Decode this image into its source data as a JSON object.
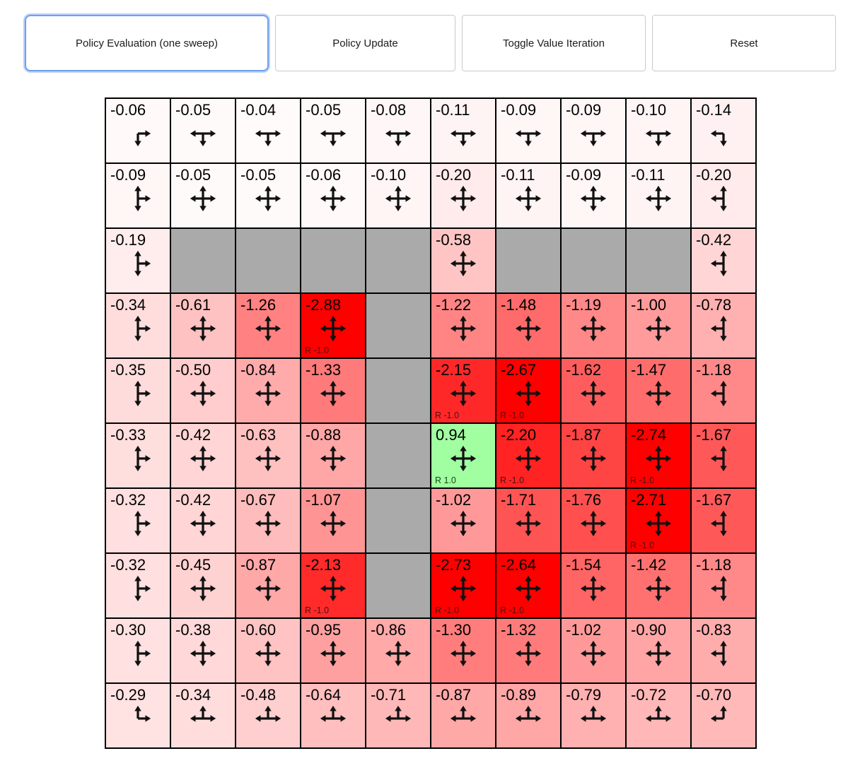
{
  "toolbar": {
    "buttons": [
      {
        "label": "Policy Evaluation (one sweep)",
        "active": true
      },
      {
        "label": "Policy Update",
        "active": false
      },
      {
        "label": "Toggle Value Iteration",
        "active": false
      },
      {
        "label": "Reset",
        "active": false
      }
    ]
  },
  "colors": {
    "wall": "#aaaaaa",
    "accent_focus": "#6f9ff2",
    "button_border": "#c9c9c9",
    "cell_border": "#000000",
    "positive_cell": "#a1ffa1",
    "strong_negative_cell": "#ff0000"
  },
  "grid": {
    "rows": 10,
    "cols": 10,
    "cells": [
      [
        {
          "v": -0.06,
          "a": "rd"
        },
        {
          "v": -0.05,
          "a": "lrd"
        },
        {
          "v": -0.04,
          "a": "lrd"
        },
        {
          "v": -0.05,
          "a": "lrd"
        },
        {
          "v": -0.08,
          "a": "lrd"
        },
        {
          "v": -0.11,
          "a": "lrd"
        },
        {
          "v": -0.09,
          "a": "lrd"
        },
        {
          "v": -0.09,
          "a": "lrd"
        },
        {
          "v": -0.1,
          "a": "lrd"
        },
        {
          "v": -0.14,
          "a": "ld"
        }
      ],
      [
        {
          "v": -0.09,
          "a": "urd"
        },
        {
          "v": -0.05,
          "a": "ulrd"
        },
        {
          "v": -0.05,
          "a": "ulrd"
        },
        {
          "v": -0.06,
          "a": "ulrd"
        },
        {
          "v": -0.1,
          "a": "ulrd"
        },
        {
          "v": -0.2,
          "a": "ulrd"
        },
        {
          "v": -0.11,
          "a": "ulrd"
        },
        {
          "v": -0.09,
          "a": "ulrd"
        },
        {
          "v": -0.11,
          "a": "ulrd"
        },
        {
          "v": -0.2,
          "a": "uld"
        }
      ],
      [
        {
          "v": -0.19,
          "a": "urd"
        },
        {
          "wall": true
        },
        {
          "wall": true
        },
        {
          "wall": true
        },
        {
          "wall": true
        },
        {
          "v": -0.58,
          "a": "ulrd"
        },
        {
          "wall": true
        },
        {
          "wall": true
        },
        {
          "wall": true
        },
        {
          "v": -0.42,
          "a": "uld"
        }
      ],
      [
        {
          "v": -0.34,
          "a": "urd"
        },
        {
          "v": -0.61,
          "a": "ulrd"
        },
        {
          "v": -1.26,
          "a": "ulrd"
        },
        {
          "v": -2.88,
          "a": "ulrd",
          "r": "R -1.0"
        },
        {
          "wall": true
        },
        {
          "v": -1.22,
          "a": "ulrd"
        },
        {
          "v": -1.48,
          "a": "ulrd"
        },
        {
          "v": -1.19,
          "a": "ulrd"
        },
        {
          "v": -1.0,
          "a": "ulrd"
        },
        {
          "v": -0.78,
          "a": "uld"
        }
      ],
      [
        {
          "v": -0.35,
          "a": "urd"
        },
        {
          "v": -0.5,
          "a": "ulrd"
        },
        {
          "v": -0.84,
          "a": "ulrd"
        },
        {
          "v": -1.33,
          "a": "ulrd"
        },
        {
          "wall": true
        },
        {
          "v": -2.15,
          "a": "ulrd",
          "r": "R -1.0"
        },
        {
          "v": -2.67,
          "a": "ulrd",
          "r": "R -1.0"
        },
        {
          "v": -1.62,
          "a": "ulrd"
        },
        {
          "v": -1.47,
          "a": "ulrd"
        },
        {
          "v": -1.18,
          "a": "uld"
        }
      ],
      [
        {
          "v": -0.33,
          "a": "urd"
        },
        {
          "v": -0.42,
          "a": "ulrd"
        },
        {
          "v": -0.63,
          "a": "ulrd"
        },
        {
          "v": -0.88,
          "a": "ulrd"
        },
        {
          "wall": true
        },
        {
          "v": 0.94,
          "a": "ulrd",
          "r": "R 1.0"
        },
        {
          "v": -2.2,
          "a": "ulrd",
          "r": "R -1.0"
        },
        {
          "v": -1.87,
          "a": "ulrd"
        },
        {
          "v": -2.74,
          "a": "ulrd",
          "r": "R -1.0"
        },
        {
          "v": -1.67,
          "a": "uld"
        }
      ],
      [
        {
          "v": -0.32,
          "a": "urd"
        },
        {
          "v": -0.42,
          "a": "ulrd"
        },
        {
          "v": -0.67,
          "a": "ulrd"
        },
        {
          "v": -1.07,
          "a": "ulrd"
        },
        {
          "wall": true
        },
        {
          "v": -1.02,
          "a": "ulrd"
        },
        {
          "v": -1.71,
          "a": "ulrd"
        },
        {
          "v": -1.76,
          "a": "ulrd"
        },
        {
          "v": -2.71,
          "a": "ulrd",
          "r": "R -1.0"
        },
        {
          "v": -1.67,
          "a": "uld"
        }
      ],
      [
        {
          "v": -0.32,
          "a": "urd"
        },
        {
          "v": -0.45,
          "a": "ulrd"
        },
        {
          "v": -0.87,
          "a": "ulrd"
        },
        {
          "v": -2.13,
          "a": "ulrd",
          "r": "R -1.0"
        },
        {
          "wall": true
        },
        {
          "v": -2.73,
          "a": "ulrd",
          "r": "R -1.0"
        },
        {
          "v": -2.64,
          "a": "ulrd",
          "r": "R -1.0"
        },
        {
          "v": -1.54,
          "a": "ulrd"
        },
        {
          "v": -1.42,
          "a": "ulrd"
        },
        {
          "v": -1.18,
          "a": "uld"
        }
      ],
      [
        {
          "v": -0.3,
          "a": "urd"
        },
        {
          "v": -0.38,
          "a": "ulrd"
        },
        {
          "v": -0.6,
          "a": "ulrd"
        },
        {
          "v": -0.95,
          "a": "ulrd"
        },
        {
          "v": -0.86,
          "a": "ulrd"
        },
        {
          "v": -1.3,
          "a": "ulrd"
        },
        {
          "v": -1.32,
          "a": "ulrd"
        },
        {
          "v": -1.02,
          "a": "ulrd"
        },
        {
          "v": -0.9,
          "a": "ulrd"
        },
        {
          "v": -0.83,
          "a": "uld"
        }
      ],
      [
        {
          "v": -0.29,
          "a": "ur"
        },
        {
          "v": -0.34,
          "a": "ulr"
        },
        {
          "v": -0.48,
          "a": "ulr"
        },
        {
          "v": -0.64,
          "a": "ulr"
        },
        {
          "v": -0.71,
          "a": "ulr"
        },
        {
          "v": -0.87,
          "a": "ulr"
        },
        {
          "v": -0.89,
          "a": "ulr"
        },
        {
          "v": -0.79,
          "a": "ulr"
        },
        {
          "v": -0.72,
          "a": "ulr"
        },
        {
          "v": -0.7,
          "a": "ul"
        }
      ]
    ]
  }
}
